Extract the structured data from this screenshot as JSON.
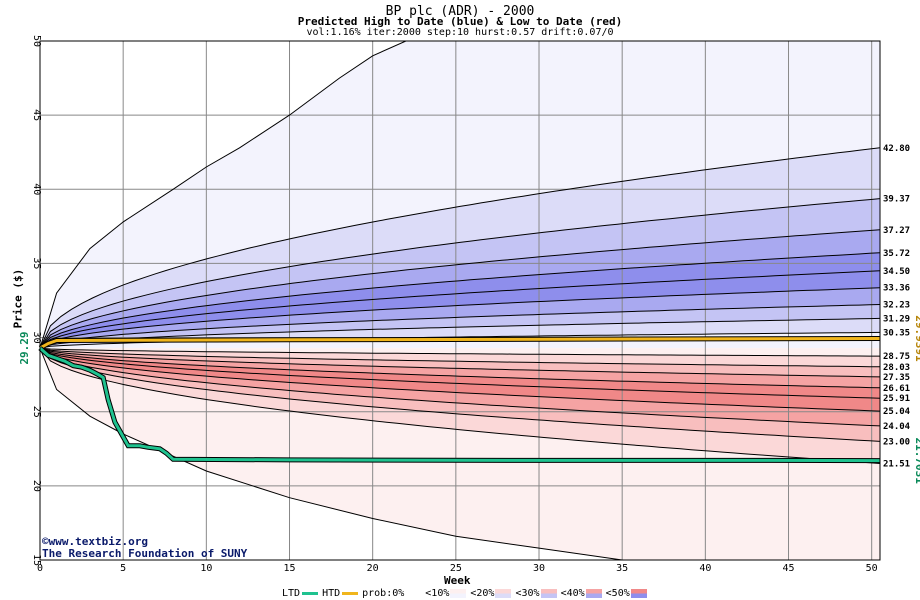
{
  "title": "BP plc (ADR) - 2000",
  "subtitle": "Predicted High to Date (blue) &  Low to Date (red)",
  "params": "vol:1.16% iter:2000 step:10 hurst:0.57 drift:0.07/0",
  "credit": {
    "line1": "©www.textbiz.org",
    "line2": "The Research Foundation of SUNY"
  },
  "legend": {
    "ltd": "LTD",
    "htd": "HTD",
    "prob": "prob:0%",
    "bins": [
      "<10%",
      "<20%",
      "<30%",
      "<40%",
      "<50%"
    ]
  },
  "colors": {
    "grid": "#888888",
    "ltd_line": "#1fc28f",
    "htd_line": "#f0b51c",
    "blue_bands": [
      "#f3f3fd",
      "#dcdcf8",
      "#c4c4f4",
      "#a9a9f0",
      "#8e8eec"
    ],
    "red_bands": [
      "#fdf0f0",
      "#fbd8d8",
      "#f8bebe",
      "#f5a3a3",
      "#f08888"
    ],
    "annotation_green": "#0b8a5a",
    "annotation_gold": "#b7860b"
  },
  "chart_data": {
    "type": "area",
    "title": "BP plc (ADR) - 2000",
    "xlabel": "Week",
    "ylabel": "Price ($)",
    "xlim": [
      0,
      50.5
    ],
    "ylim": [
      15,
      50
    ],
    "x_ticks": [
      0,
      5,
      10,
      15,
      20,
      25,
      30,
      35,
      40,
      45,
      50
    ],
    "y_ticks": [
      15,
      20,
      25,
      30,
      35,
      40,
      45,
      50
    ],
    "grid": true,
    "legend_position": "bottom",
    "start_price": 29.29,
    "start_label": "29.29",
    "htd_quantiles": [
      {
        "label": "42.80",
        "end": 42.8
      },
      {
        "label": "39.37",
        "end": 39.37
      },
      {
        "label": "37.27",
        "end": 37.27
      },
      {
        "label": "35.72",
        "end": 35.72
      },
      {
        "label": "34.50",
        "end": 34.5
      },
      {
        "label": "33.36",
        "end": 33.36
      },
      {
        "label": "32.23",
        "end": 32.23
      },
      {
        "label": "31.29",
        "end": 31.29
      },
      {
        "label": "30.35",
        "end": 30.35
      }
    ],
    "ltd_quantiles": [
      {
        "label": "28.75",
        "end": 28.75
      },
      {
        "label": "28.03",
        "end": 28.03
      },
      {
        "label": "27.35",
        "end": 27.35
      },
      {
        "label": "26.61",
        "end": 26.61
      },
      {
        "label": "25.91",
        "end": 25.91
      },
      {
        "label": "25.04",
        "end": 25.04
      },
      {
        "label": "24.04",
        "end": 24.04
      },
      {
        "label": "23.00",
        "end": 23.0
      },
      {
        "label": "21.51",
        "end": 21.51
      }
    ],
    "outer_upper_path": [
      [
        0,
        29.29
      ],
      [
        1,
        33
      ],
      [
        3,
        36
      ],
      [
        5,
        37.8
      ],
      [
        8,
        40
      ],
      [
        10,
        41.5
      ],
      [
        12,
        42.8
      ],
      [
        15,
        45
      ],
      [
        18,
        47.5
      ],
      [
        20,
        49
      ],
      [
        22,
        50
      ]
    ],
    "outer_lower_path": [
      [
        0,
        29.29
      ],
      [
        1,
        26.5
      ],
      [
        3,
        24.7
      ],
      [
        5,
        23.5
      ],
      [
        10,
        21
      ],
      [
        15,
        19.2
      ],
      [
        20,
        17.8
      ],
      [
        25,
        16.6
      ],
      [
        30,
        15.8
      ],
      [
        35,
        15
      ]
    ],
    "htd_actual": {
      "name": "HTD",
      "final_label": "29.9391",
      "points": [
        [
          0,
          29.29
        ],
        [
          0.5,
          29.6
        ],
        [
          1,
          29.8
        ],
        [
          15,
          29.85
        ],
        [
          50.5,
          29.94
        ]
      ]
    },
    "ltd_actual": {
      "name": "LTD",
      "final_label": "21.7031",
      "points": [
        [
          0,
          29.29
        ],
        [
          0.5,
          28.8
        ],
        [
          1,
          28.6
        ],
        [
          1.5,
          28.4
        ],
        [
          2,
          28.1
        ],
        [
          2.5,
          28.0
        ],
        [
          3,
          27.8
        ],
        [
          3.5,
          27.5
        ],
        [
          3.8,
          27.3
        ],
        [
          4.1,
          25.8
        ],
        [
          4.5,
          24.3
        ],
        [
          5,
          23.3
        ],
        [
          5.3,
          22.7
        ],
        [
          6,
          22.7
        ],
        [
          6.5,
          22.6
        ],
        [
          7.2,
          22.5
        ],
        [
          7.6,
          22.2
        ],
        [
          8,
          21.8
        ],
        [
          15,
          21.75
        ],
        [
          30,
          21.72
        ],
        [
          44,
          21.72
        ],
        [
          50.5,
          21.7
        ]
      ]
    }
  }
}
